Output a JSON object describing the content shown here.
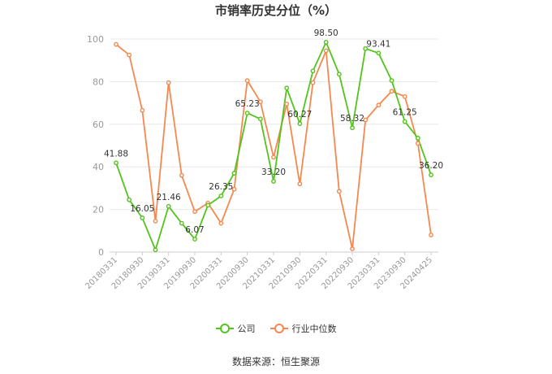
{
  "chart_data": {
    "type": "line",
    "title": "市销率历史分位（%）",
    "ylim": [
      0,
      100
    ],
    "yticks": [
      0,
      20,
      40,
      60,
      80,
      100
    ],
    "grid": true,
    "legend_position": "bottom",
    "x": [
      "20180331",
      "20180630",
      "20180930",
      "20181231",
      "20190331",
      "20190630",
      "20190930",
      "20191231",
      "20200331",
      "20200630",
      "20200930",
      "20201231",
      "20210331",
      "20210630",
      "20210930",
      "20211231",
      "20220331",
      "20220630",
      "20220930",
      "20221231",
      "20230331",
      "20230630",
      "20230930",
      "20231231",
      "20240425"
    ],
    "x_tick_labels": [
      "20180331",
      "20180930",
      "20190331",
      "20190930",
      "20200331",
      "20200930",
      "20210331",
      "20210930",
      "20220331",
      "20220930",
      "20230331",
      "20230930",
      "20240425"
    ],
    "series": [
      {
        "name": "公司",
        "color": "#52c41a",
        "values": [
          41.88,
          24.5,
          16.05,
          1.0,
          21.46,
          13.5,
          6.07,
          22.0,
          26.35,
          37.0,
          65.23,
          62.5,
          33.2,
          77.0,
          60.27,
          85.0,
          98.5,
          83.5,
          58.32,
          95.5,
          93.41,
          80.5,
          61.25,
          53.5,
          36.2
        ],
        "data_labels": {
          "0": "41.88",
          "2": "16.05",
          "4": "21.46",
          "6": "6.07",
          "8": "26.35",
          "10": "65.23",
          "12": "33.20",
          "14": "60.27",
          "16": "98.50",
          "18": "58.32",
          "20": "93.41",
          "22": "61.25",
          "24": "36.20"
        }
      },
      {
        "name": "行业中位数",
        "color": "#f5884f",
        "values": [
          97.5,
          92.5,
          66.5,
          14.5,
          79.5,
          36.0,
          19.0,
          23.0,
          13.5,
          29.5,
          80.5,
          70.5,
          44.5,
          69.5,
          32.0,
          79.5,
          94.5,
          28.5,
          1.5,
          62.0,
          69.0,
          75.5,
          73.0,
          51.0,
          8.0
        ]
      }
    ]
  },
  "source_text": "数据来源：恒生聚源"
}
